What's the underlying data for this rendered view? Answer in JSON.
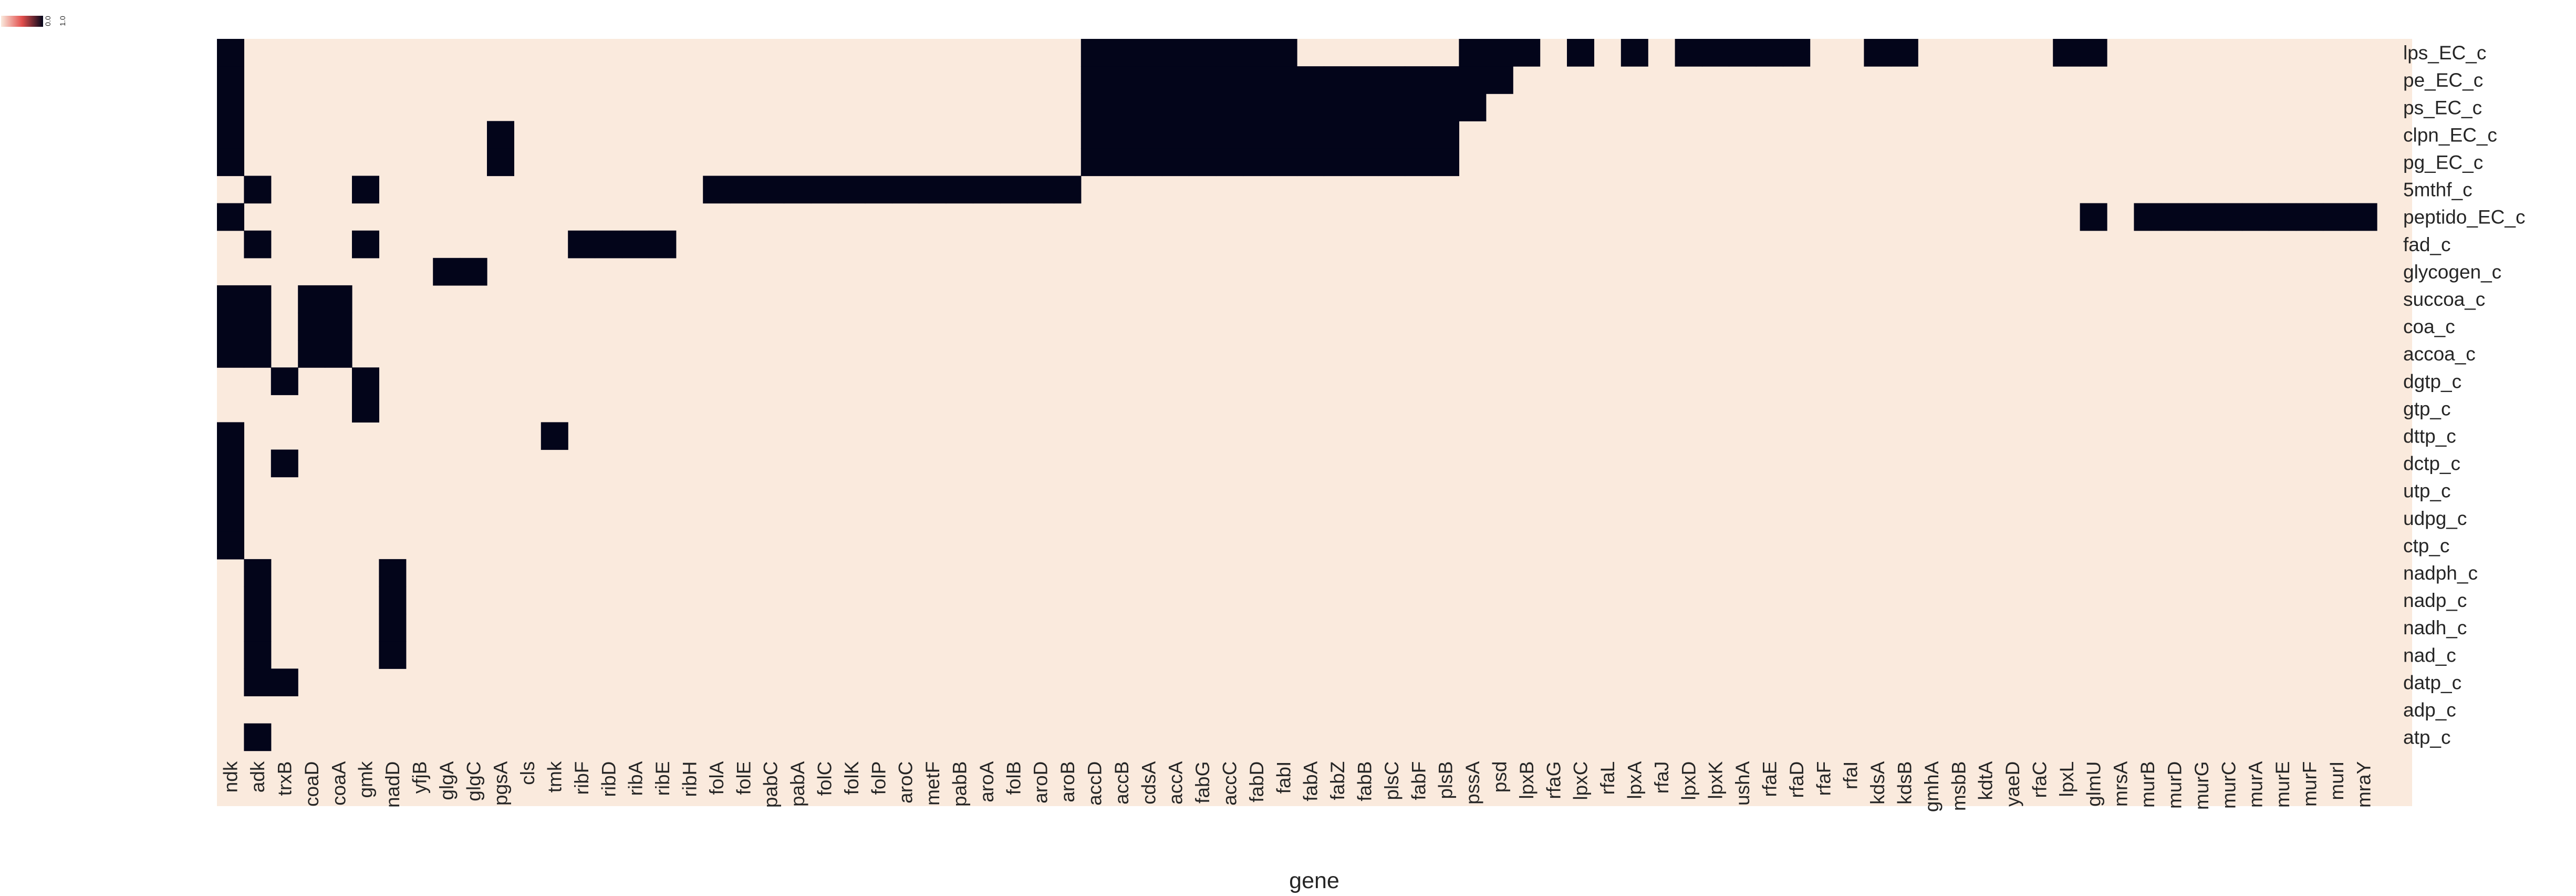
{
  "chart_data": {
    "type": "heatmap",
    "title": "",
    "xlabel": "gene",
    "ylabel": "",
    "colorbar": {
      "ticks": [
        "0.0",
        "1.0"
      ],
      "colors": [
        "#faeadd",
        "#e24e4c",
        "#03051a"
      ]
    },
    "colors": {
      "off": "#faeadd",
      "on": "#03051a"
    },
    "x": [
      "ndk",
      "adk",
      "trxB",
      "coaD",
      "coaA",
      "gmk",
      "nadD",
      "yfjB",
      "glgA",
      "glgC",
      "pgsA",
      "cls",
      "tmk",
      "ribF",
      "ribD",
      "ribA",
      "ribE",
      "ribH",
      "folA",
      "folE",
      "pabC",
      "pabA",
      "folC",
      "folK",
      "folP",
      "aroC",
      "metF",
      "pabB",
      "aroA",
      "folB",
      "aroD",
      "aroB",
      "accD",
      "accB",
      "cdsA",
      "accA",
      "fabG",
      "accC",
      "fabD",
      "fabI",
      "fabA",
      "fabZ",
      "fabB",
      "plsC",
      "fabF",
      "plsB",
      "pssA",
      "psd",
      "lpxB",
      "rfaG",
      "lpxC",
      "rfaL",
      "lpxA",
      "rfaJ",
      "lpxD",
      "lpxK",
      "ushA",
      "rfaE",
      "rfaD",
      "rfaF",
      "rfaI",
      "kdsA",
      "kdsB",
      "gmhA",
      "msbB",
      "kdtA",
      "yaeD",
      "rfaC",
      "lpxL",
      "glmU",
      "mrsA",
      "murB",
      "murD",
      "murG",
      "murC",
      "murA",
      "murE",
      "murF",
      "murI",
      "mraY"
    ],
    "y": [
      "lps_EC_c",
      "pe_EC_c",
      "ps_EC_c",
      "clpn_EC_c",
      "pg_EC_c",
      "5mthf_c",
      "peptido_EC_c",
      "fad_c",
      "glycogen_c",
      "succoa_c",
      "coa_c",
      "accoa_c",
      "dgtp_c",
      "gtp_c",
      "dttp_c",
      "dctp_c",
      "utp_c",
      "udpg_c",
      "ctp_c",
      "nadph_c",
      "nadp_c",
      "nadh_c",
      "nad_c",
      "datp_c",
      "adp_c",
      "atp_c"
    ],
    "on_cells": {
      "lps_EC_c": [
        "ndk",
        "accD",
        "accB",
        "cdsA",
        "accA",
        "fabG",
        "accC",
        "fabD",
        "fabI",
        "pssA",
        "psd",
        "lpxB",
        "lpxC",
        "lpxA",
        "lpxD",
        "lpxK",
        "ushA",
        "rfaE",
        "rfaD",
        "kdsA",
        "kdsB",
        "lpxL",
        "glmU"
      ],
      "pe_EC_c": [
        "ndk",
        "accD",
        "accB",
        "cdsA",
        "accA",
        "fabG",
        "accC",
        "fabD",
        "fabI",
        "fabA",
        "fabZ",
        "fabB",
        "plsC",
        "fabF",
        "plsB",
        "pssA",
        "psd"
      ],
      "ps_EC_c": [
        "ndk",
        "accD",
        "accB",
        "cdsA",
        "accA",
        "fabG",
        "accC",
        "fabD",
        "fabI",
        "fabA",
        "fabZ",
        "fabB",
        "plsC",
        "fabF",
        "plsB",
        "pssA"
      ],
      "clpn_EC_c": [
        "ndk",
        "pgsA",
        "accD",
        "accB",
        "cdsA",
        "accA",
        "fabG",
        "accC",
        "fabD",
        "fabI",
        "fabA",
        "fabZ",
        "fabB",
        "plsC",
        "fabF",
        "plsB"
      ],
      "pg_EC_c": [
        "ndk",
        "pgsA",
        "accD",
        "accB",
        "cdsA",
        "accA",
        "fabG",
        "accC",
        "fabD",
        "fabI",
        "fabA",
        "fabZ",
        "fabB",
        "plsC",
        "fabF",
        "plsB"
      ],
      "5mthf_c": [
        "adk",
        "gmk",
        "folA",
        "folE",
        "pabC",
        "pabA",
        "folC",
        "folK",
        "folP",
        "aroC",
        "metF",
        "pabB",
        "aroA",
        "folB",
        "aroD",
        "aroB"
      ],
      "peptido_EC_c": [
        "ndk",
        "glmU",
        "murB",
        "murD",
        "murG",
        "murC",
        "murA",
        "murE",
        "murF",
        "murI",
        "mraY"
      ],
      "fad_c": [
        "adk",
        "gmk",
        "ribF",
        "ribD",
        "ribA",
        "ribE"
      ],
      "glycogen_c": [
        "glgA",
        "glgC"
      ],
      "succoa_c": [
        "ndk",
        "adk",
        "coaD",
        "coaA"
      ],
      "coa_c": [
        "ndk",
        "adk",
        "coaD",
        "coaA"
      ],
      "accoa_c": [
        "ndk",
        "adk",
        "coaD",
        "coaA"
      ],
      "dgtp_c": [
        "trxB",
        "gmk"
      ],
      "gtp_c": [
        "gmk"
      ],
      "dttp_c": [
        "ndk",
        "tmk"
      ],
      "dctp_c": [
        "ndk",
        "trxB"
      ],
      "utp_c": [
        "ndk"
      ],
      "udpg_c": [
        "ndk"
      ],
      "ctp_c": [
        "ndk"
      ],
      "nadph_c": [
        "adk",
        "nadD"
      ],
      "nadp_c": [
        "adk",
        "nadD"
      ],
      "nadh_c": [
        "adk",
        "nadD"
      ],
      "nad_c": [
        "adk",
        "nadD"
      ],
      "datp_c": [
        "adk",
        "trxB"
      ],
      "adp_c": [],
      "atp_c": [
        "adk"
      ]
    }
  }
}
